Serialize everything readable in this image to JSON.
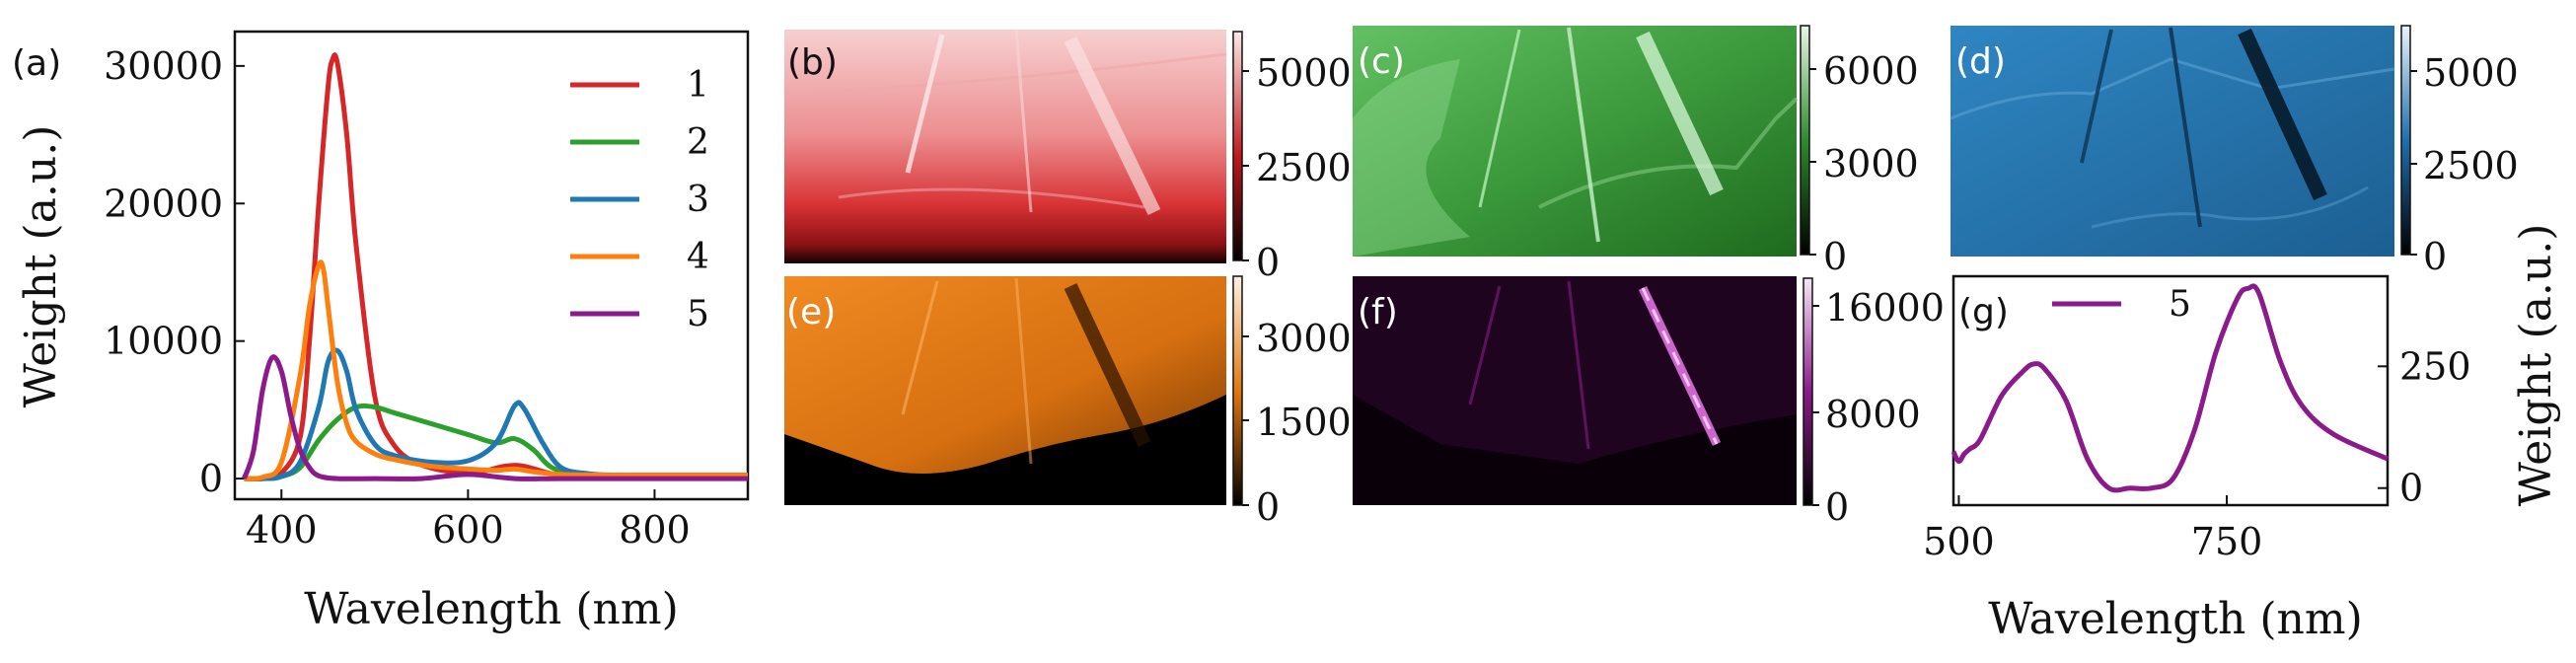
{
  "chart_data": [
    {
      "panel_label": "(a)",
      "type": "line",
      "xlabel": "Wavelength (nm)",
      "ylabel": "Weight (a.u.)",
      "xlim": [
        350,
        900
      ],
      "ylim": [
        -1500,
        32500
      ],
      "xticks": [
        400,
        600,
        800
      ],
      "yticks": [
        0,
        10000,
        20000,
        30000
      ],
      "legend_position": "top-right",
      "series": [
        {
          "name": "1",
          "color": "#d62728",
          "x": [
            360,
            380,
            400,
            420,
            430,
            440,
            450,
            455,
            460,
            470,
            480,
            500,
            520,
            550,
            600,
            640,
            660,
            690,
            720,
            760,
            800,
            850,
            900
          ],
          "y": [
            0,
            0,
            400,
            3000,
            10000,
            20000,
            28500,
            30500,
            30200,
            25000,
            17000,
            6000,
            2500,
            1000,
            400,
            900,
            900,
            350,
            250,
            250,
            250,
            250,
            250
          ]
        },
        {
          "name": "2",
          "color": "#2ca02c",
          "x": [
            360,
            380,
            400,
            420,
            440,
            460,
            480,
            500,
            520,
            550,
            600,
            630,
            650,
            670,
            690,
            720,
            760,
            800,
            850,
            900
          ],
          "y": [
            0,
            0,
            150,
            800,
            2800,
            4300,
            5200,
            5200,
            4800,
            4200,
            3200,
            2600,
            2900,
            2100,
            800,
            350,
            250,
            250,
            250,
            250
          ]
        },
        {
          "name": "3",
          "color": "#1f77b4",
          "x": [
            360,
            380,
            400,
            420,
            440,
            450,
            460,
            470,
            480,
            500,
            520,
            560,
            600,
            630,
            650,
            660,
            680,
            700,
            730,
            760,
            800,
            850,
            900
          ],
          "y": [
            0,
            0,
            150,
            1200,
            5200,
            8500,
            9300,
            7800,
            5000,
            2500,
            1700,
            1200,
            1300,
            2600,
            5300,
            5100,
            2600,
            800,
            350,
            250,
            250,
            250,
            250
          ]
        },
        {
          "name": "4",
          "color": "#ff7f0e",
          "x": [
            360,
            380,
            400,
            420,
            430,
            440,
            445,
            450,
            460,
            470,
            480,
            500,
            520,
            560,
            600,
            630,
            650,
            670,
            700,
            750,
            800,
            850,
            900
          ],
          "y": [
            0,
            100,
            1200,
            7500,
            12500,
            15500,
            15200,
            12500,
            7000,
            4000,
            2700,
            1800,
            1400,
            900,
            700,
            600,
            700,
            500,
            300,
            250,
            250,
            250,
            250
          ]
        },
        {
          "name": "5",
          "color": "#8b1a8b",
          "x": [
            360,
            370,
            380,
            390,
            400,
            410,
            420,
            430,
            440,
            460,
            500,
            550,
            600,
            650,
            700,
            800,
            900
          ],
          "y": [
            0,
            2000,
            6500,
            8800,
            7800,
            4600,
            2100,
            800,
            200,
            0,
            0,
            0,
            300,
            0,
            0,
            0,
            0
          ]
        }
      ]
    },
    {
      "panel_label": "(g)",
      "type": "line",
      "xlabel": "Wavelength (nm)",
      "ylabel": "Weight (a.u.)",
      "xlim": [
        495,
        900
      ],
      "ylim": [
        -35,
        435
      ],
      "xticks": [
        500,
        750
      ],
      "yticks": [
        0,
        250
      ],
      "legend_position": "top-left",
      "series": [
        {
          "name": "5",
          "color": "#8b1a8b",
          "x": [
            495,
            500,
            505,
            510,
            520,
            540,
            560,
            570,
            580,
            600,
            620,
            640,
            660,
            680,
            700,
            720,
            740,
            760,
            770,
            780,
            800,
            820,
            850,
            900
          ],
          "y": [
            75,
            55,
            70,
            80,
            100,
            190,
            240,
            255,
            245,
            180,
            60,
            0,
            0,
            0,
            20,
            120,
            280,
            390,
            410,
            400,
            260,
            170,
            110,
            60
          ]
        }
      ]
    }
  ],
  "maps": [
    {
      "panel_label": "(b)",
      "colorbar_ticks": [
        "0",
        "2500",
        "5000"
      ],
      "colormap": "red"
    },
    {
      "panel_label": "(c)",
      "colorbar_ticks": [
        "0",
        "3000",
        "6000"
      ],
      "colormap": "green"
    },
    {
      "panel_label": "(d)",
      "colorbar_ticks": [
        "0",
        "2500",
        "5000"
      ],
      "colormap": "blue"
    },
    {
      "panel_label": "(e)",
      "colorbar_ticks": [
        "0",
        "1500",
        "3000"
      ],
      "colormap": "orange"
    },
    {
      "panel_label": "(f)",
      "colorbar_ticks": [
        "0",
        "8000",
        "16000"
      ],
      "colormap": "purple"
    }
  ]
}
